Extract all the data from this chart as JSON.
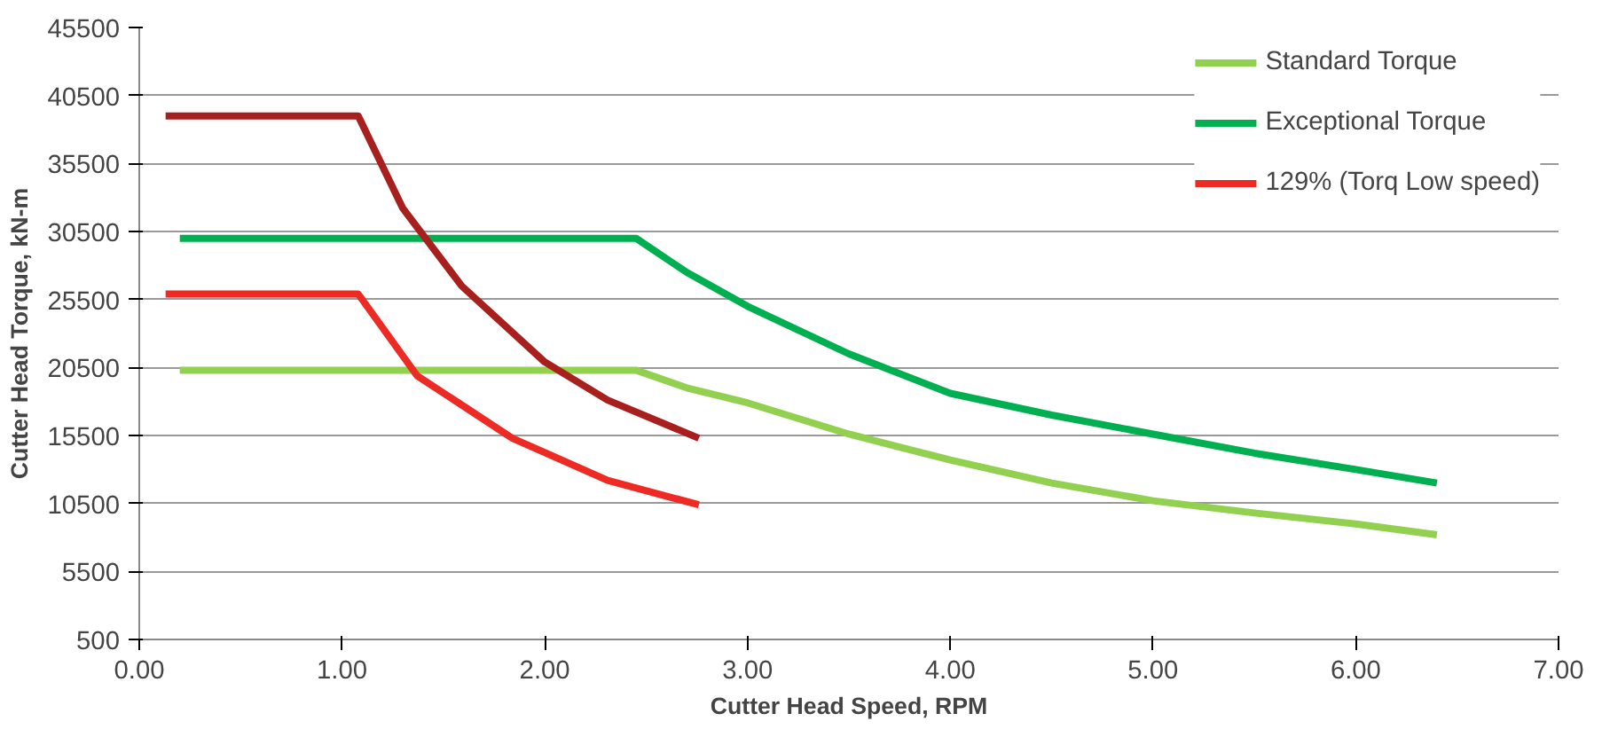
{
  "chart_data": {
    "type": "line",
    "xlabel": "Cutter Head Speed, RPM",
    "ylabel": "Cutter Head Torque, kN-m",
    "xlim": [
      0,
      7
    ],
    "xticks": [
      {
        "value": 0,
        "label": "0.00"
      },
      {
        "value": 1,
        "label": "1.00"
      },
      {
        "value": 2,
        "label": "2.00"
      },
      {
        "value": 3,
        "label": "3.00"
      },
      {
        "value": 4,
        "label": "4.00"
      },
      {
        "value": 5,
        "label": "5.00"
      },
      {
        "value": 6,
        "label": "6.00"
      },
      {
        "value": 7,
        "label": "7.00"
      }
    ],
    "ylim": [
      500,
      45500
    ],
    "yticks": [
      500,
      5500,
      10500,
      15500,
      20500,
      25500,
      30500,
      35500,
      40500,
      45500
    ],
    "grid": "y",
    "legend": "top right",
    "line_style": "solid",
    "marker": "none",
    "series": [
      {
        "name": "Standard Torque",
        "color": "#92d050",
        "x": [
          0.2,
          2.45,
          2.7,
          3,
          3.5,
          4,
          4.5,
          5,
          5.5,
          6,
          6.4
        ],
        "values": [
          20300,
          20300,
          19000,
          17900,
          15600,
          13700,
          12000,
          10700,
          9800,
          9000,
          8200
        ]
      },
      {
        "name": "Exceptional Torque",
        "color": "#00b050",
        "x": [
          0.2,
          2.45,
          2.7,
          3,
          3.5,
          4,
          4.5,
          5,
          5.5,
          6,
          6.4
        ],
        "values": [
          30000,
          30000,
          27500,
          25000,
          21500,
          18600,
          17000,
          15600,
          14200,
          13000,
          12000
        ]
      },
      {
        "name": "129% (Torq Low speed)",
        "color": "#ee2a24",
        "x": [
          0.13,
          1.08,
          1.37,
          1.84,
          2.31,
          2.76
        ],
        "values": [
          25900,
          25900,
          19900,
          15300,
          12200,
          10400
        ]
      },
      {
        "color": "#a8201e",
        "x": [
          0.13,
          1.08,
          1.3,
          1.59,
          2.0,
          2.31,
          2.76
        ],
        "values": [
          39000,
          39000,
          32200,
          26500,
          20900,
          18100,
          15300
        ]
      }
    ]
  }
}
